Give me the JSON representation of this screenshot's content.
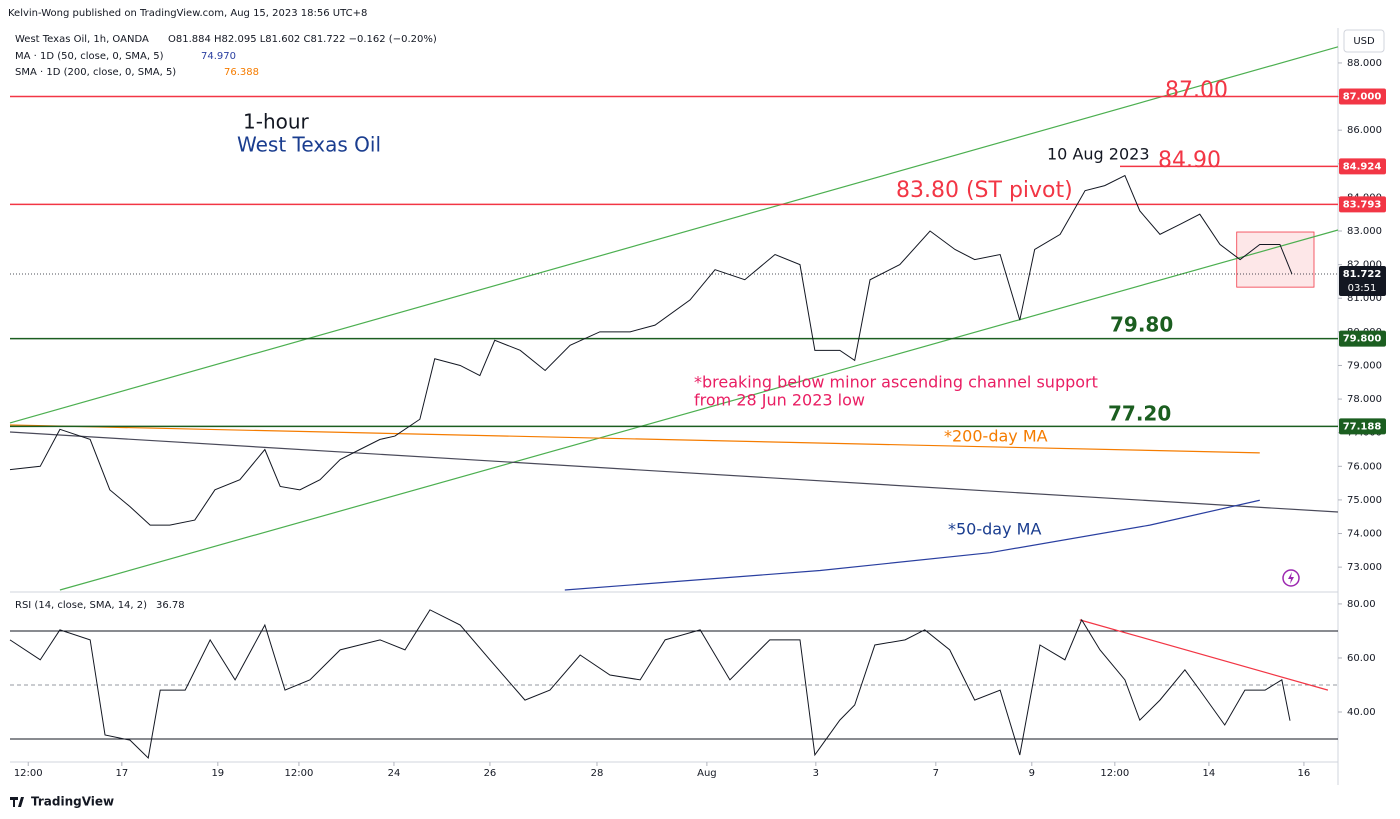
{
  "header": {
    "publisher": "Kelvin-Wong published on TradingView.com, Aug 15, 2023 18:56 UTC+8",
    "symbol": "West Texas Oil, 1h, OANDA",
    "ohlc": "O81.884  H82.095  L81.602  C81.722  −0.162 (−0.20%)",
    "ma50": "MA · 1D (50, close, 0, SMA, 5)",
    "ma50_value": "74.970",
    "sma200": "SMA · 1D (200, close, 0, SMA, 5)",
    "sma200_value": "76.388",
    "currency": "USD"
  },
  "footer": {
    "brand": "TradingView"
  },
  "chart_data": [
    {
      "type": "line",
      "x": [
        0,
        0.63,
        1.04,
        1.67,
        2.08,
        2.5,
        2.92,
        3.33,
        3.85,
        4.27,
        4.79,
        5.31,
        5.63,
        6.04,
        6.46,
        6.88,
        7.29,
        7.71,
        8.02,
        8.54,
        8.85,
        9.38,
        9.79,
        10.1,
        10.63,
        11.15,
        11.67,
        12.29,
        12.92,
        13.44,
        14.17,
        14.69,
        15.31,
        15.94,
        16.46,
        16.77,
        17.29,
        17.6,
        17.92,
        18.54,
        19.17,
        19.69,
        20.1,
        20.63,
        21.04,
        21.35,
        21.88,
        22.4,
        22.81,
        23.23,
        23.54,
        23.96,
        24.38,
        24.79,
        25.21,
        25.63,
        26.04,
        26.46,
        26.71
      ],
      "series": [
        {
          "color": "#131722",
          "values": [
            75.9,
            76,
            77.1,
            76.8,
            75.3,
            74.8,
            74.25,
            74.25,
            74.4,
            75.3,
            75.6,
            76.5,
            75.4,
            75.3,
            75.6,
            76.2,
            76.5,
            76.8,
            76.9,
            77.4,
            79.2,
            79,
            78.7,
            79.75,
            79.45,
            78.85,
            79.6,
            80,
            80,
            80.2,
            80.95,
            81.85,
            81.55,
            82.3,
            82,
            79.45,
            79.45,
            79.15,
            81.55,
            82,
            83,
            82.45,
            82.15,
            82.3,
            80.35,
            82.45,
            82.9,
            84.2,
            84.35,
            84.65,
            83.6,
            82.9,
            83.2,
            83.5,
            82.6,
            82.15,
            82.6,
            82.6,
            81.722
          ]
        }
      ],
      "countdown": "03:51",
      "xlim": [
        0,
        27.67
      ],
      "ylim": [
        72.32,
        88.98
      ],
      "yticks": [
        {
          "value": 73,
          "label": "73.000"
        },
        {
          "value": 74,
          "label": "74.000"
        },
        {
          "value": 75,
          "label": "75.000"
        },
        {
          "value": 76,
          "label": "76.000"
        },
        {
          "value": 77,
          "label": "77.000"
        },
        {
          "value": 78,
          "label": "78.000"
        },
        {
          "value": 79,
          "label": "79.000"
        },
        {
          "value": 80,
          "label": "80.000"
        },
        {
          "value": 81,
          "label": "81.000"
        },
        {
          "value": 82,
          "label": "82.000"
        },
        {
          "value": 83,
          "label": "83.000"
        },
        {
          "value": 84,
          "label": "84.000"
        },
        {
          "value": 85,
          "label": "85.000"
        },
        {
          "value": 86,
          "label": "86.000"
        },
        {
          "value": 87,
          "label": "87.000"
        },
        {
          "value": 88,
          "label": "88.000"
        }
      ],
      "xticks": [
        {
          "value": 0.38,
          "label": "12:00"
        },
        {
          "value": 2.33,
          "label": "17"
        },
        {
          "value": 4.33,
          "label": "19"
        },
        {
          "value": 6.02,
          "label": "12:00"
        },
        {
          "value": 8,
          "label": "24"
        },
        {
          "value": 10,
          "label": "26"
        },
        {
          "value": 12.23,
          "label": "28"
        },
        {
          "value": 14.52,
          "label": "Aug"
        },
        {
          "value": 16.79,
          "label": "3"
        },
        {
          "value": 19.29,
          "label": "7"
        },
        {
          "value": 21.29,
          "label": "9"
        },
        {
          "value": 23.02,
          "label": "12:00"
        },
        {
          "value": 24.98,
          "label": "14"
        },
        {
          "value": 26.96,
          "label": "16"
        }
      ],
      "levels": [
        {
          "value": 87,
          "label": "87.000",
          "color": "#f23645"
        },
        {
          "value": 84.924,
          "color": "#f23645"
        },
        {
          "value": 83.793,
          "color": "#f23645"
        },
        {
          "value": 79.8,
          "label": "79.800",
          "color": "#1b5e20"
        },
        {
          "value": 77.188,
          "color": "#1b5e20"
        }
      ],
      "trendlines": [
        {
          "color": "#4caf50",
          "x": [
            0,
            27.67
          ],
          "values": [
            77.29,
            88.48
          ]
        },
        {
          "color": "#4caf50",
          "x": [
            1.04,
            27.67
          ],
          "values": [
            72.32,
            83.03
          ]
        },
        {
          "color": "#4a4a5a",
          "x": [
            0,
            27.67
          ],
          "values": [
            77.02,
            74.64
          ]
        },
        {
          "color": "#f57c00",
          "x": [
            0,
            26.04
          ],
          "values": [
            77.23,
            76.4
          ]
        },
        {
          "color": "#2a3fa0",
          "x": [
            11.56,
            16.88,
            20.42,
            23.75,
            26.04
          ],
          "values": [
            72.32,
            72.9,
            73.43,
            74.25,
            74.99
          ]
        }
      ],
      "zone": {
        "x": [
          25.56,
          27.17
        ],
        "values": [
          82.97,
          81.33
        ]
      },
      "annotations": [
        "1-hour",
        "West Texas Oil",
        "87.00",
        "84.90",
        "83.80 (ST pivot)",
        "10 Aug 2023",
        "79.80",
        "*breaking below minor ascending channel support",
        "from 28 Jun 2023 low",
        "77.20",
        "*200-day MA",
        "*50-day MA"
      ]
    },
    {
      "type": "line",
      "title": "RSI (14, close, SMA, 14, 2)",
      "x": [
        0,
        0.63,
        1.04,
        1.67,
        1.98,
        2.5,
        2.88,
        3.13,
        3.65,
        4.17,
        4.69,
        5.31,
        5.73,
        6.25,
        6.88,
        7.71,
        8.23,
        8.75,
        9.38,
        10,
        10.73,
        11.25,
        11.88,
        12.5,
        13.13,
        13.65,
        14.38,
        15,
        15.83,
        16.46,
        16.77,
        17.29,
        17.6,
        18.02,
        18.65,
        19.06,
        19.58,
        20.1,
        20.63,
        21.04,
        21.46,
        21.98,
        22.33,
        22.71,
        23.23,
        23.54,
        23.96,
        24.48,
        24.79,
        25.31,
        25.73,
        26.15,
        26.5,
        26.67
      ],
      "series": [
        {
          "color": "#131722",
          "values": [
            66.7,
            59.3,
            70.4,
            66.7,
            31.5,
            29.6,
            23,
            48.1,
            48.1,
            66.7,
            51.9,
            72.2,
            48.1,
            51.9,
            63,
            66.7,
            63,
            77.8,
            72.2,
            59.3,
            44.4,
            48.1,
            61.1,
            53.7,
            51.9,
            66.7,
            70.4,
            51.9,
            66.7,
            66.7,
            24.1,
            37,
            42.6,
            64.8,
            66.7,
            70.4,
            63,
            44.4,
            48.1,
            24.1,
            64.8,
            59.3,
            74.1,
            63,
            51.9,
            37,
            44.4,
            55.6,
            48.1,
            35.2,
            48.1,
            48.1,
            51.9,
            36.78
          ]
        }
      ],
      "xlim": [
        0,
        27.67
      ],
      "ylim": [
        21.5,
        83.3
      ],
      "yticks": [
        {
          "value": 40,
          "label": "40.00"
        },
        {
          "value": 60,
          "label": "60.00"
        },
        {
          "value": 80,
          "label": "80.00"
        }
      ],
      "bands": [
        70,
        30
      ],
      "midline": 50,
      "trendlines": [
        {
          "color": "#f23645",
          "x": [
            22.29,
            27.46
          ],
          "values": [
            74.1,
            48.1
          ]
        }
      ]
    }
  ]
}
